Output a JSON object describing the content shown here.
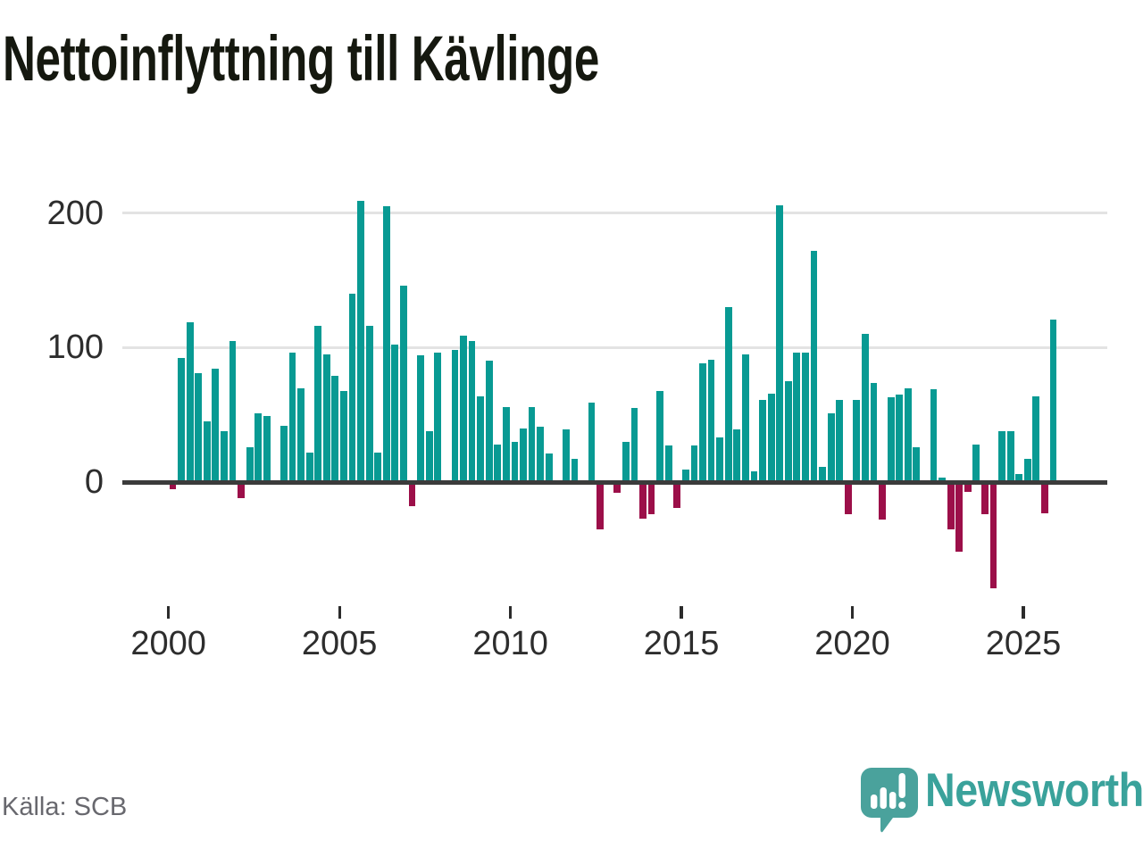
{
  "header": {
    "title": "Nettoinflyttning till Kävlinge"
  },
  "footer": {
    "source_label": "Källa: SCB",
    "brand": "Newsworthy"
  },
  "branding": {
    "logo_icon": "newsworthy-speech-bubble-bar-chart-icon",
    "logo_color": "#4aa29c",
    "wordmark_color": "#3aa29b"
  },
  "chart_data": {
    "type": "bar",
    "title": "Nettoinflyttning till Kävlinge",
    "frequency": "quarterly",
    "x_start": "2000Q1",
    "x_end": "2025Q4",
    "values": [
      -5,
      92,
      119,
      81,
      45,
      84,
      38,
      105,
      -12,
      26,
      51,
      49,
      -2,
      42,
      96,
      70,
      22,
      116,
      95,
      79,
      68,
      140,
      209,
      116,
      22,
      205,
      102,
      146,
      -18,
      94,
      38,
      96,
      0,
      98,
      109,
      105,
      64,
      90,
      28,
      56,
      30,
      40,
      56,
      41,
      21,
      0,
      39,
      17,
      0,
      59,
      -35,
      0,
      -8,
      30,
      55,
      -27,
      -24,
      68,
      27,
      -19,
      9,
      27,
      88,
      91,
      33,
      130,
      39,
      95,
      8,
      61,
      66,
      206,
      75,
      96,
      96,
      172,
      11,
      51,
      61,
      -24,
      61,
      110,
      74,
      -28,
      63,
      65,
      70,
      26,
      0,
      69,
      3,
      -35,
      -52,
      -7,
      28,
      -24,
      -79,
      38,
      38,
      6,
      17,
      64,
      -23,
      121
    ],
    "x_tick_labels": [
      "2000",
      "2005",
      "2010",
      "2015",
      "2020",
      "2025"
    ],
    "y_ticks": [
      0,
      100,
      200
    ],
    "ylim": [
      -90,
      215
    ],
    "grid": "horizontal",
    "legend": "none",
    "colors": {
      "positive": "#089a93",
      "negative": "#9c0f49",
      "axis": "#3b3b3b"
    }
  }
}
